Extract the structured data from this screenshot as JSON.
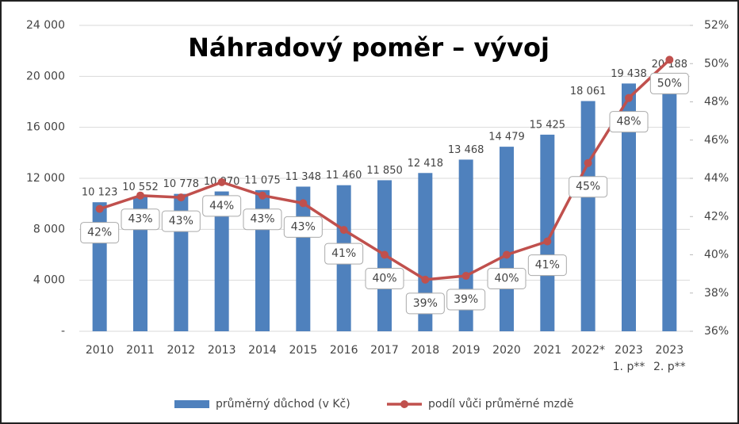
{
  "chart_data": {
    "type": "bar-line",
    "title": "Náhradový poměr – vývoj",
    "categories": [
      "2010",
      "2011",
      "2012",
      "2013",
      "2014",
      "2015",
      "2016",
      "2017",
      "2018",
      "2019",
      "2020",
      "2021",
      "2022*",
      "2023\n1. p**",
      "2023\n2. p**"
    ],
    "series": [
      {
        "name": "průměrný důchod (v Kč)",
        "color": "#4f81bd",
        "kind": "bar",
        "values": [
          10123,
          10552,
          10778,
          10970,
          11075,
          11348,
          11460,
          11850,
          12418,
          13468,
          14479,
          15425,
          18061,
          19438,
          20188
        ],
        "value_labels": [
          "10 123",
          "10 552",
          "10 778",
          "10 970",
          "11 075",
          "11 348",
          "11 460",
          "11 850",
          "12 418",
          "13 468",
          "14 479",
          "15 425",
          "18 061",
          "19 438",
          "20 188"
        ]
      },
      {
        "name": "podíl vůči průměrné mzdě",
        "color": "#c0504d",
        "kind": "line",
        "axis": "y2",
        "values": [
          42.4,
          43.1,
          43.0,
          43.8,
          43.1,
          42.7,
          41.3,
          40.0,
          38.7,
          38.9,
          40.0,
          40.7,
          44.8,
          48.2,
          50.2
        ],
        "value_labels": [
          "42%",
          "43%",
          "43%",
          "44%",
          "43%",
          "43%",
          "41%",
          "40%",
          "39%",
          "39%",
          "40%",
          "41%",
          "45%",
          "48%",
          "50%"
        ]
      }
    ],
    "ylim": [
      0,
      24000
    ],
    "yticks": [
      {
        "value": 0,
        "label": "-"
      },
      {
        "value": 4000,
        "label": "4 000"
      },
      {
        "value": 8000,
        "label": "8 000"
      },
      {
        "value": 12000,
        "label": "12 000"
      },
      {
        "value": 16000,
        "label": "16 000"
      },
      {
        "value": 20000,
        "label": "20 000"
      },
      {
        "value": 24000,
        "label": "24 000"
      }
    ],
    "y2lim": [
      36,
      52
    ],
    "y2ticks": [
      {
        "value": 36,
        "label": "36%"
      },
      {
        "value": 38,
        "label": "38%"
      },
      {
        "value": 40,
        "label": "40%"
      },
      {
        "value": 42,
        "label": "42%"
      },
      {
        "value": 44,
        "label": "44%"
      },
      {
        "value": 46,
        "label": "46%"
      },
      {
        "value": 48,
        "label": "48%"
      },
      {
        "value": 50,
        "label": "50%"
      },
      {
        "value": 52,
        "label": "52%"
      }
    ],
    "grid": true,
    "legend": "bottom"
  }
}
